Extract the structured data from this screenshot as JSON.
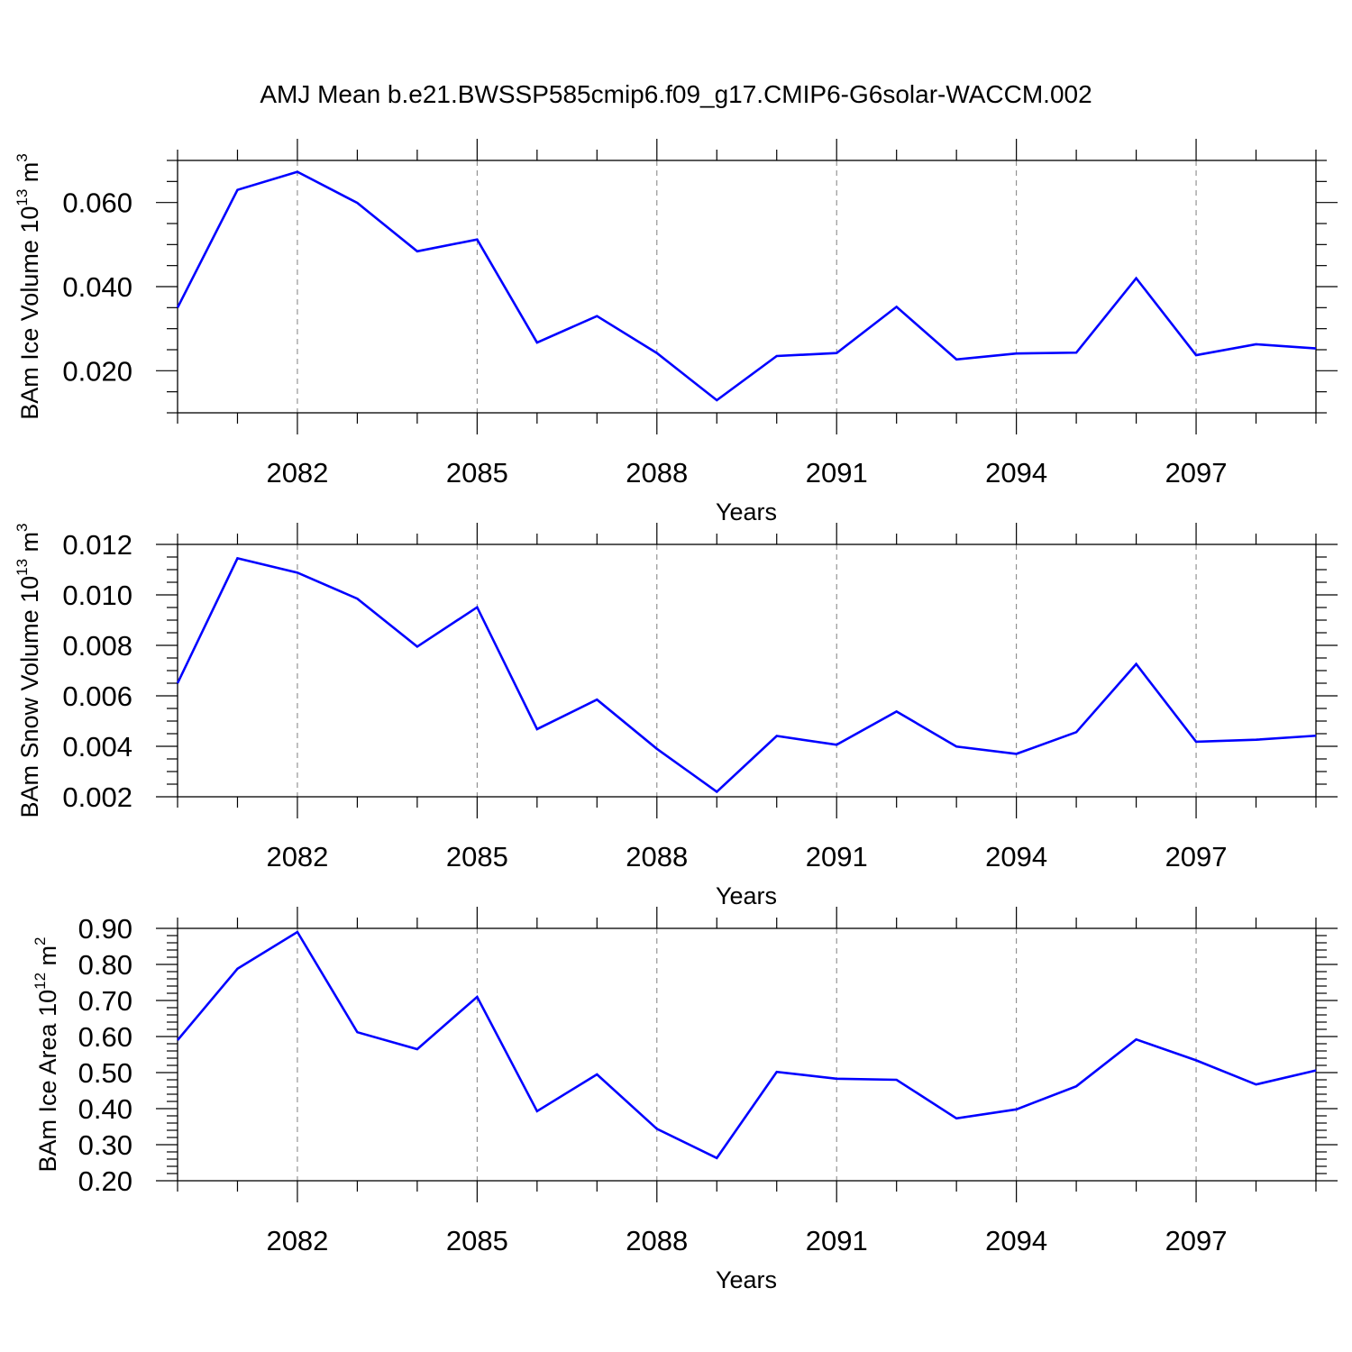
{
  "title": "AMJ Mean b.e21.BWSSP585cmip6.f09_g17.CMIP6-G6solar-WACCM.002",
  "line_color": "#0000ff",
  "grid_color": "#7f7f7f",
  "chart_data": [
    {
      "type": "line",
      "ylabel": {
        "text": "BAm Ice Volume 10",
        "exp": "13",
        "unit": " m",
        "unit_exp": "3"
      },
      "xlabel": "Years",
      "x": [
        2080,
        2081,
        2082,
        2083,
        2084,
        2085,
        2086,
        2087,
        2088,
        2089,
        2090,
        2091,
        2092,
        2093,
        2094,
        2095,
        2096,
        2097,
        2098,
        2099
      ],
      "xlim": [
        2080,
        2099
      ],
      "x_ticks": [
        2082,
        2085,
        2088,
        2091,
        2094,
        2097
      ],
      "x_tick_labels": [
        "2082",
        "2085",
        "2088",
        "2091",
        "2094",
        "2097"
      ],
      "ylim": [
        0.01,
        0.07
      ],
      "y_ticks": [
        0.02,
        0.04,
        0.06
      ],
      "y_tick_labels": [
        "0.020",
        "0.040",
        "0.060"
      ],
      "y_minor_step": 0.005,
      "grid": "vertical dashed at major x ticks",
      "series": [
        {
          "values": [
            0.035,
            0.063,
            0.0673,
            0.0599,
            0.0484,
            0.0512,
            0.0267,
            0.033,
            0.0242,
            0.013,
            0.0235,
            0.0242,
            0.0352,
            0.0227,
            0.0241,
            0.0243,
            0.042,
            0.0237,
            0.0263,
            0.0253
          ]
        }
      ]
    },
    {
      "type": "line",
      "ylabel": {
        "text": "BAm Snow Volume 10",
        "exp": "13",
        "unit": " m",
        "unit_exp": "3"
      },
      "xlabel": "Years",
      "x": [
        2080,
        2081,
        2082,
        2083,
        2084,
        2085,
        2086,
        2087,
        2088,
        2089,
        2090,
        2091,
        2092,
        2093,
        2094,
        2095,
        2096,
        2097,
        2098,
        2099
      ],
      "xlim": [
        2080,
        2099
      ],
      "x_ticks": [
        2082,
        2085,
        2088,
        2091,
        2094,
        2097
      ],
      "x_tick_labels": [
        "2082",
        "2085",
        "2088",
        "2091",
        "2094",
        "2097"
      ],
      "ylim": [
        0.002,
        0.012
      ],
      "y_ticks": [
        0.002,
        0.004,
        0.006,
        0.008,
        0.01,
        0.012
      ],
      "y_tick_labels": [
        "0.002",
        "0.004",
        "0.006",
        "0.008",
        "0.010",
        "0.012"
      ],
      "y_minor_step": 0.0005,
      "grid": "vertical dashed at major x ticks",
      "series": [
        {
          "values": [
            0.0065,
            0.01145,
            0.01088,
            0.00985,
            0.00795,
            0.00951,
            0.00468,
            0.00585,
            0.0039,
            0.0022,
            0.00441,
            0.00406,
            0.00538,
            0.00399,
            0.0037,
            0.00456,
            0.00726,
            0.00418,
            0.00426,
            0.00442
          ]
        }
      ]
    },
    {
      "type": "line",
      "ylabel": {
        "text": "BAm Ice Area 10",
        "exp": "12",
        "unit": " m",
        "unit_exp": "2"
      },
      "xlabel": "Years",
      "x": [
        2080,
        2081,
        2082,
        2083,
        2084,
        2085,
        2086,
        2087,
        2088,
        2089,
        2090,
        2091,
        2092,
        2093,
        2094,
        2095,
        2096,
        2097,
        2098,
        2099
      ],
      "xlim": [
        2080,
        2099
      ],
      "x_ticks": [
        2082,
        2085,
        2088,
        2091,
        2094,
        2097
      ],
      "x_tick_labels": [
        "2082",
        "2085",
        "2088",
        "2091",
        "2094",
        "2097"
      ],
      "ylim": [
        0.2,
        0.9
      ],
      "y_ticks": [
        0.2,
        0.3,
        0.4,
        0.5,
        0.6,
        0.7,
        0.8,
        0.9
      ],
      "y_tick_labels": [
        "0.20",
        "0.30",
        "0.40",
        "0.50",
        "0.60",
        "0.70",
        "0.80",
        "0.90"
      ],
      "y_minor_step": 0.02,
      "grid": "vertical dashed at major x ticks",
      "series": [
        {
          "values": [
            0.59,
            0.788,
            0.89,
            0.612,
            0.565,
            0.71,
            0.393,
            0.495,
            0.344,
            0.263,
            0.502,
            0.483,
            0.48,
            0.373,
            0.398,
            0.462,
            0.592,
            0.534,
            0.467,
            0.506
          ]
        }
      ]
    }
  ]
}
